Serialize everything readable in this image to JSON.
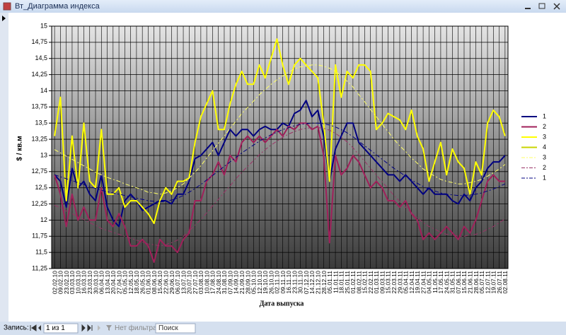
{
  "window": {
    "title": "Вт_Диаграмма индекса"
  },
  "chart_data": {
    "type": "line",
    "y_label": "$ / кв.м",
    "x_label": "Дата выпуска",
    "categories": [
      "02.02.10",
      "09.02.10",
      "23.02.10",
      "03.03.10",
      "10.03.10",
      "16.03.10",
      "23.03.10",
      "30.03.10",
      "06.04.10",
      "13.04.10",
      "20.04.10",
      "27.04.10",
      "05.05.10",
      "12.05.10",
      "18.05.10",
      "26.05.10",
      "01.06.10",
      "08.06.10",
      "15.06.10",
      "22.06.10",
      "29.06.10",
      "06.07.10",
      "13.07.10",
      "20.07.10",
      "27.07.10",
      "03.08.10",
      "10.08.10",
      "17.08.10",
      "24.08.10",
      "31.08.10",
      "07.09.10",
      "14.09.10",
      "21.09.10",
      "28.09.10",
      "05.10.10",
      "12.10.10",
      "19.10.10",
      "26.10.10",
      "02.11.10",
      "09.11.10",
      "16.11.10",
      "23.11.10",
      "30.11.10",
      "07.12.10",
      "14.12.10",
      "21.12.10",
      "28.12.10",
      "05.01.11",
      "11.01.11",
      "18.01.11",
      "25.01.11",
      "01.02.11",
      "08.02.11",
      "15.02.11",
      "22.02.11",
      "01.03.11",
      "09.03.11",
      "15.03.11",
      "22.03.11",
      "29.03.11",
      "05.04.11",
      "12.04.11",
      "19.04.11",
      "27.04.11",
      "04.05.11",
      "11.05.11",
      "17.05.11",
      "24.05.11",
      "31.05.11",
      "07.06.11",
      "15.06.11",
      "21.06.11",
      "28.06.11",
      "05.07.11",
      "12.07.11",
      "19.07.11",
      "26.07.11",
      "02.08.11"
    ],
    "ylim": [
      11.25,
      15
    ],
    "yticks": [
      {
        "value": 11.25,
        "label": "11,25"
      },
      {
        "value": 11.5,
        "label": "11,5"
      },
      {
        "value": 11.75,
        "label": "11,75"
      },
      12,
      {
        "value": 12.25,
        "label": "12,25"
      },
      {
        "value": 12.5,
        "label": "12,5"
      },
      {
        "value": 12.75,
        "label": "12,75"
      },
      13,
      {
        "value": 13.25,
        "label": "13,25"
      },
      {
        "value": 13.5,
        "label": "13,5"
      },
      {
        "value": 13.75,
        "label": "13,75"
      },
      14,
      {
        "value": 14.25,
        "label": "14,25"
      },
      {
        "value": 14.5,
        "label": "14,5"
      },
      {
        "value": 14.75,
        "label": "14,75"
      },
      15
    ],
    "grid": true,
    "legend": "right",
    "series": [
      {
        "name": "1",
        "color": "#000080",
        "dash": false,
        "values": [
          12.7,
          12.6,
          12.2,
          12.8,
          12.5,
          12.6,
          12.4,
          12.3,
          12.7,
          12.2,
          12.0,
          11.9,
          12.3,
          12.4,
          12.3,
          12.15,
          12.2,
          12.25,
          12.3,
          12.3,
          12.25,
          12.4,
          12.4,
          12.6,
          12.95,
          13.0,
          13.1,
          13.2,
          13.0,
          13.2,
          13.4,
          13.3,
          13.4,
          13.4,
          13.3,
          13.4,
          13.45,
          13.4,
          13.4,
          13.5,
          13.45,
          13.65,
          13.7,
          13.85,
          13.6,
          13.7,
          13.3,
          12.6,
          13.1,
          13.3,
          13.5,
          13.5,
          13.2,
          13.1,
          13.0,
          12.9,
          12.8,
          12.7,
          12.7,
          12.6,
          12.7,
          12.6,
          12.5,
          12.4,
          12.5,
          12.4,
          12.4,
          12.4,
          12.3,
          12.25,
          12.4,
          12.3,
          12.5,
          12.6,
          12.8,
          12.9,
          12.9,
          13.0
        ]
      },
      {
        "name": "2",
        "color": "#a0205a",
        "dash": false,
        "values": [
          12.7,
          12.4,
          11.9,
          12.4,
          12.0,
          12.2,
          12.0,
          12.0,
          12.5,
          12.0,
          11.9,
          12.1,
          11.9,
          11.6,
          11.6,
          11.7,
          11.6,
          11.35,
          11.7,
          11.6,
          11.6,
          11.5,
          11.7,
          11.8,
          12.3,
          12.3,
          12.6,
          12.7,
          12.9,
          12.7,
          13.0,
          12.9,
          13.2,
          13.3,
          13.2,
          13.3,
          13.2,
          13.3,
          13.4,
          13.3,
          13.45,
          13.4,
          13.5,
          13.5,
          13.4,
          13.45,
          13.0,
          11.65,
          13.0,
          12.7,
          12.8,
          13.0,
          12.9,
          12.7,
          12.5,
          12.6,
          12.5,
          12.3,
          12.3,
          12.2,
          12.3,
          12.1,
          12.0,
          11.7,
          11.8,
          11.7,
          11.8,
          11.9,
          11.8,
          11.7,
          11.9,
          11.8,
          12.0,
          12.3,
          12.6,
          12.7,
          12.6,
          12.6
        ]
      },
      {
        "name": "3",
        "color": "#ffff00",
        "dash": false,
        "values": [
          13.3,
          13.9,
          12.3,
          13.3,
          12.5,
          13.5,
          12.6,
          12.5,
          13.4,
          12.4,
          12.4,
          12.5,
          12.2,
          12.3,
          12.3,
          12.2,
          12.1,
          11.95,
          12.3,
          12.5,
          12.4,
          12.6,
          12.6,
          12.65,
          13.2,
          13.6,
          13.8,
          14.0,
          13.4,
          13.4,
          13.8,
          14.1,
          14.3,
          14.1,
          14.1,
          14.4,
          14.2,
          14.5,
          14.8,
          14.4,
          14.1,
          14.4,
          14.5,
          14.4,
          14.3,
          14.2,
          13.5,
          12.6,
          14.4,
          13.9,
          14.3,
          14.2,
          14.4,
          14.4,
          14.3,
          13.4,
          13.5,
          13.65,
          13.6,
          13.55,
          13.4,
          13.7,
          13.3,
          13.1,
          12.6,
          12.9,
          13.2,
          12.7,
          13.1,
          12.9,
          12.8,
          12.4,
          12.9,
          12.7,
          13.5,
          13.7,
          13.6,
          13.3
        ]
      },
      {
        "name": "4",
        "color": "#c8d400",
        "dash": false,
        "values": [
          null,
          null,
          null,
          null,
          null,
          null,
          null,
          null,
          null,
          null,
          null,
          null,
          null,
          null,
          null,
          null,
          null,
          null,
          null,
          null,
          null,
          null,
          null,
          null,
          null,
          null,
          null,
          null,
          null,
          null,
          null,
          null,
          null,
          null,
          null,
          null,
          null,
          null,
          null,
          null,
          null,
          null,
          null,
          null,
          null,
          null,
          null,
          null,
          null,
          null,
          null,
          null,
          null,
          null,
          null,
          null,
          null,
          null,
          null,
          null,
          null,
          null,
          null,
          null,
          null,
          null,
          null,
          null,
          null,
          null,
          null,
          null,
          null,
          null,
          null,
          null,
          null,
          null
        ]
      },
      {
        "name": "3",
        "color": "#ffff66",
        "dash": true,
        "values": [
          13.09,
          13.04,
          12.99,
          12.94,
          12.89,
          12.84,
          12.79,
          12.74,
          12.7,
          12.66,
          12.63,
          12.6,
          12.56,
          12.53,
          12.5,
          12.47,
          12.43,
          12.42,
          12.4,
          12.42,
          12.45,
          12.5,
          12.56,
          12.65,
          12.74,
          12.84,
          12.96,
          13.07,
          13.19,
          13.3,
          13.42,
          13.53,
          13.65,
          13.74,
          13.84,
          13.94,
          14.02,
          14.1,
          14.17,
          14.23,
          14.29,
          14.34,
          14.37,
          14.38,
          14.4,
          14.4,
          14.38,
          14.35,
          14.3,
          14.23,
          14.15,
          14.06,
          13.94,
          13.83,
          13.71,
          13.6,
          13.48,
          13.37,
          13.25,
          13.15,
          13.06,
          12.96,
          12.88,
          12.79,
          12.73,
          12.68,
          12.63,
          12.6,
          12.58,
          12.56,
          12.56,
          12.58,
          12.6,
          12.63,
          12.68,
          12.73,
          12.79,
          12.86
        ]
      },
      {
        "name": "2",
        "color": "#993366",
        "dash": true,
        "values": [
          12.23,
          12.19,
          12.14,
          12.1,
          12.05,
          12.01,
          11.96,
          11.92,
          11.87,
          11.84,
          11.81,
          11.78,
          11.75,
          11.72,
          11.69,
          11.66,
          11.63,
          11.62,
          11.6,
          11.62,
          11.65,
          11.69,
          11.75,
          11.83,
          11.92,
          12.01,
          12.11,
          12.22,
          12.32,
          12.43,
          12.53,
          12.64,
          12.74,
          12.83,
          12.92,
          13.01,
          13.09,
          13.16,
          13.22,
          13.28,
          13.33,
          13.37,
          13.4,
          13.42,
          13.43,
          13.43,
          13.42,
          13.39,
          13.34,
          13.28,
          13.21,
          13.12,
          13.01,
          12.91,
          12.8,
          12.7,
          12.59,
          12.49,
          12.38,
          12.29,
          12.2,
          12.11,
          12.04,
          11.96,
          11.9,
          11.86,
          11.81,
          11.78,
          11.77,
          11.75,
          11.75,
          11.77,
          11.78,
          11.81,
          11.86,
          11.9,
          11.96,
          12.02
        ]
      },
      {
        "name": "1",
        "color": "#000080",
        "dash": true,
        "values": [
          12.7,
          12.67,
          12.64,
          12.61,
          12.58,
          12.55,
          12.52,
          12.49,
          12.46,
          12.44,
          12.42,
          12.4,
          12.38,
          12.36,
          12.34,
          12.32,
          12.3,
          12.29,
          12.28,
          12.29,
          12.31,
          12.34,
          12.38,
          12.43,
          12.49,
          12.55,
          12.62,
          12.69,
          12.76,
          12.83,
          12.9,
          12.97,
          13.04,
          13.1,
          13.16,
          13.22,
          13.27,
          13.32,
          13.36,
          13.4,
          13.43,
          13.46,
          13.48,
          13.49,
          13.5,
          13.5,
          13.49,
          13.47,
          13.44,
          13.4,
          13.35,
          13.29,
          13.22,
          13.15,
          13.08,
          13.01,
          12.94,
          12.87,
          12.8,
          12.74,
          12.68,
          12.62,
          12.57,
          12.52,
          12.48,
          12.45,
          12.42,
          12.4,
          12.39,
          12.38,
          12.38,
          12.39,
          12.4,
          12.42,
          12.45,
          12.48,
          12.52,
          12.56
        ]
      }
    ]
  },
  "status_bar": {
    "record_label": "Запись:",
    "record_value": "1 из 1",
    "filter": "Нет фильтра",
    "search": "Поиск"
  }
}
